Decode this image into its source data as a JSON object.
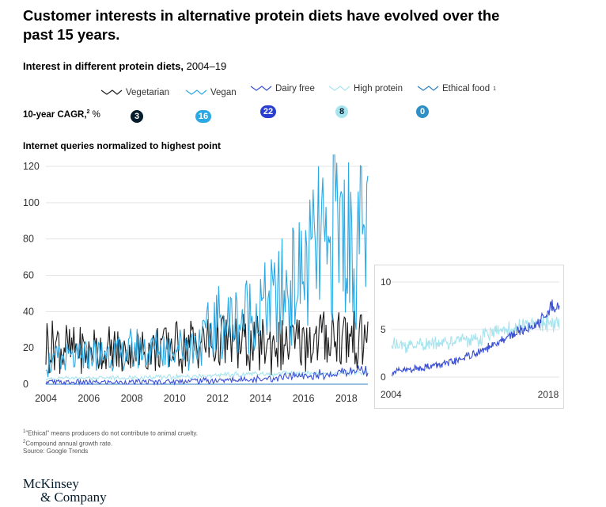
{
  "headline": "Customer interests in alternative protein diets have evolved over the past 15 years.",
  "subtitle": {
    "bold": "Interest in different protein diets,",
    "years": "2004–19"
  },
  "cagr_label": {
    "bold": "10-year CAGR,",
    "sup": "2",
    "unit": "%"
  },
  "axis_title": "Internet queries normalized to highest point",
  "footnotes": {
    "n1": {
      "sup": "1",
      "text": "\"Ethical\" means producers do not contribute to animal cruelty."
    },
    "n2": {
      "sup": "2",
      "text": "Compound annual growth rate."
    },
    "source": "Source: Google Trends"
  },
  "logo": {
    "line1": "McKinsey",
    "line2": "& Company"
  },
  "colors": {
    "vegetarian": "#1b1b1b",
    "vegan": "#2ba9e4",
    "dairy_free": "#3a4fd6",
    "high_protein": "#a8e4ee",
    "ethical_food": "#2f7fc0",
    "grid": "#e3e3e3",
    "axis_text": "#333333"
  },
  "chart_data": [
    {
      "type": "line",
      "x_start": 2004,
      "x_end": 2019,
      "x_ticks": [
        "2004",
        "2006",
        "2008",
        "2010",
        "2012",
        "2014",
        "2016",
        "2018"
      ],
      "y_ticks": [
        "0",
        "20",
        "40",
        "60",
        "80",
        "100",
        "120"
      ],
      "ylim": [
        0,
        120
      ],
      "xlabel": "",
      "ylabel": "Internet queries normalized to highest point",
      "grid": true,
      "legend_position": "top",
      "series": [
        {
          "key": "vegetarian",
          "name": "Vegetarian",
          "sup": "",
          "cagr": "3",
          "x": [
            2004.0,
            2005.0,
            2006.0,
            2007.0,
            2008.0,
            2009.0,
            2010.0,
            2011.0,
            2012.0,
            2013.0,
            2014.0,
            2015.0,
            2016.0,
            2017.0,
            2017.5,
            2018.0,
            2018.5,
            2019.0
          ],
          "values": [
            22,
            20,
            19,
            18,
            18,
            20,
            21,
            22,
            23,
            22,
            22,
            22,
            23,
            25,
            28,
            26,
            24,
            25
          ]
        },
        {
          "key": "vegan",
          "name": "Vegan",
          "sup": "",
          "cagr": "16",
          "x": [
            2004.0,
            2005.0,
            2006.0,
            2007.0,
            2008.0,
            2009.0,
            2010.0,
            2011.0,
            2011.5,
            2012.0,
            2013.0,
            2014.0,
            2015.0,
            2015.5,
            2016.0,
            2016.5,
            2016.9,
            2017.0,
            2017.2,
            2017.4,
            2017.6,
            2017.9,
            2018.2,
            2018.5,
            2018.7,
            2019.0
          ],
          "values": [
            12,
            13,
            15,
            17,
            18,
            19,
            20,
            22,
            27,
            33,
            36,
            41,
            49,
            55,
            62,
            70,
            84,
            62,
            65,
            100,
            86,
            85,
            78,
            73,
            80,
            80
          ]
        },
        {
          "key": "dairy_free",
          "name": "Dairy free",
          "sup": "",
          "cagr": "22",
          "x": [
            2004.0,
            2006.0,
            2008.0,
            2010.0,
            2012.0,
            2014.0,
            2016.0,
            2017.0,
            2018.0,
            2018.5,
            2019.0
          ],
          "values": [
            1,
            1,
            1,
            1.5,
            2,
            3,
            4.5,
            5.5,
            7,
            8,
            7.5
          ]
        },
        {
          "key": "high_protein",
          "name": "High protein",
          "sup": "",
          "cagr": "8",
          "x": [
            2004.0,
            2006.0,
            2008.0,
            2010.0,
            2012.0,
            2014.0,
            2016.0,
            2017.0,
            2018.0,
            2019.0
          ],
          "values": [
            3,
            3.5,
            3.5,
            4,
            5,
            5.5,
            6,
            6,
            6.5,
            6.5
          ]
        },
        {
          "key": "ethical_food",
          "name": "Ethical food",
          "sup": "1",
          "cagr": "0",
          "x": [
            2004.0,
            2010.0,
            2016.0,
            2019.0
          ],
          "values": [
            0,
            0,
            0,
            0
          ]
        }
      ]
    },
    {
      "type": "line",
      "x_start": 2004,
      "x_end": 2018,
      "x_ticks": [
        "2004",
        "2018"
      ],
      "y_ticks": [
        "0",
        "5",
        "10"
      ],
      "ylim": [
        0,
        10
      ],
      "grid": true,
      "series": [
        {
          "key": "high_protein",
          "x": [
            2004.0,
            2005.0,
            2006.0,
            2007.0,
            2008.0,
            2009.0,
            2010.0,
            2011.0,
            2012.0,
            2013.0,
            2014.0,
            2015.0,
            2016.0,
            2016.5,
            2017.0,
            2017.5,
            2018.0
          ],
          "values": [
            3.5,
            3.3,
            3.4,
            3.5,
            3.6,
            3.8,
            3.9,
            4.0,
            4.4,
            4.8,
            5.0,
            5.2,
            5.4,
            5.6,
            5.6,
            5.8,
            5.6
          ]
        },
        {
          "key": "dairy_free",
          "x": [
            2004.0,
            2005.0,
            2006.0,
            2007.0,
            2008.0,
            2009.0,
            2010.0,
            2011.0,
            2012.0,
            2013.0,
            2014.0,
            2015.0,
            2016.0,
            2016.5,
            2017.0,
            2017.3,
            2017.6,
            2018.0
          ],
          "values": [
            0.5,
            0.7,
            0.9,
            1.1,
            1.3,
            1.5,
            2.0,
            2.5,
            3.0,
            3.7,
            4.5,
            5.0,
            5.5,
            6.0,
            6.5,
            7.5,
            7.0,
            7.5
          ]
        }
      ]
    }
  ]
}
